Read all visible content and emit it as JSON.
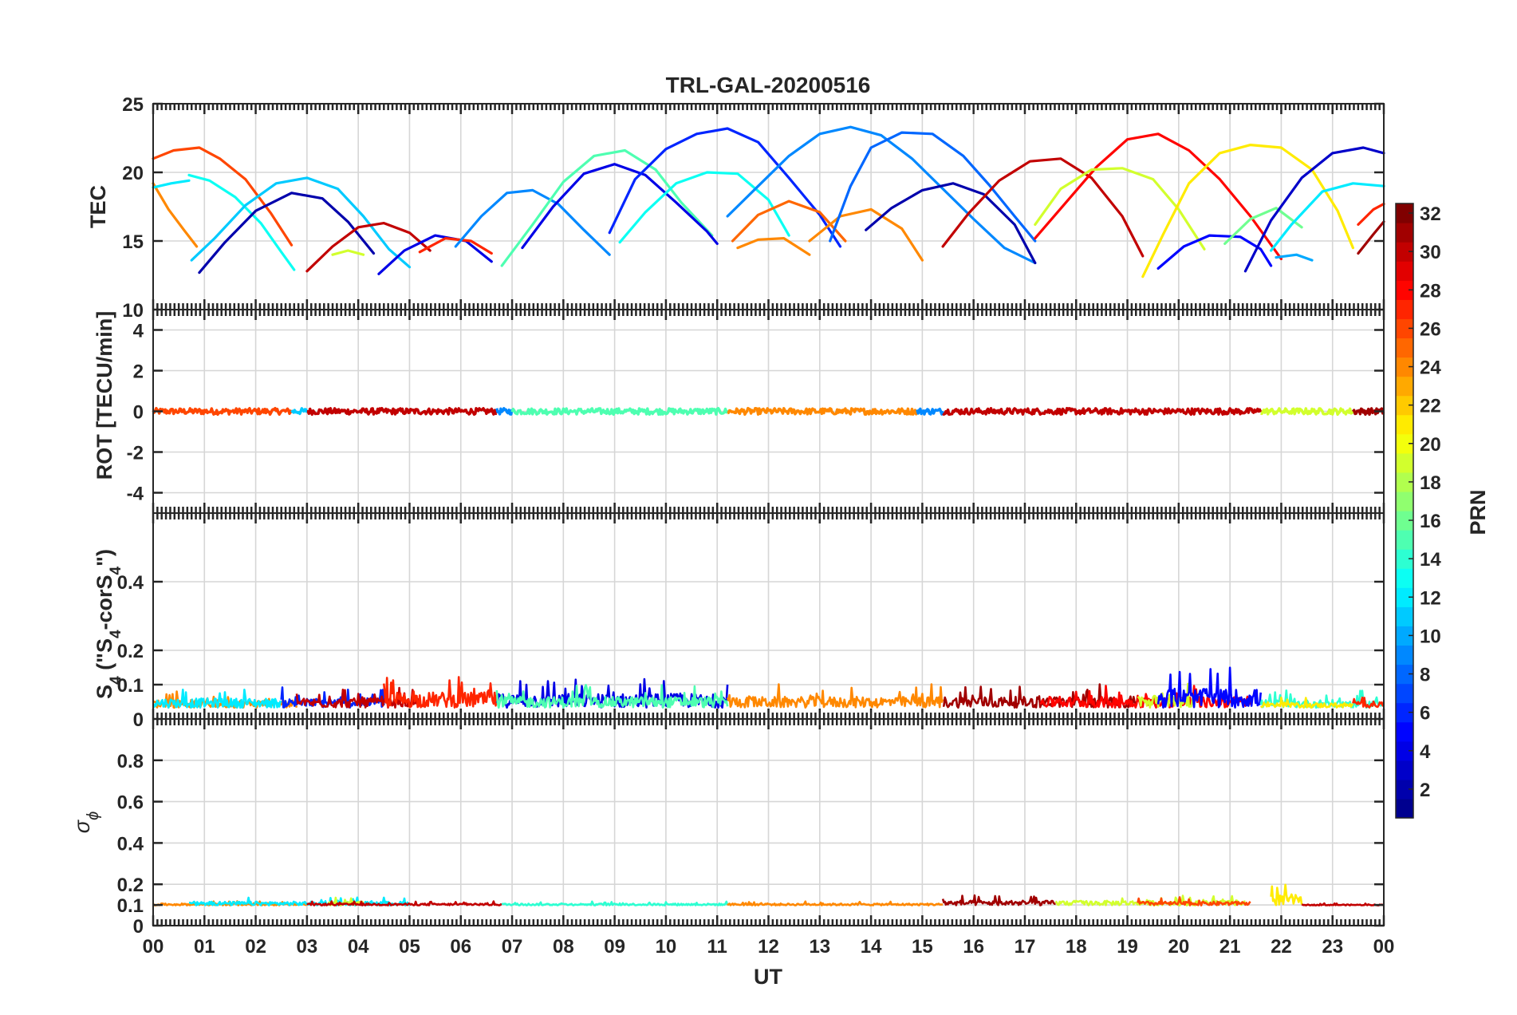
{
  "figure": {
    "title": "TRL-GAL-20200516",
    "xlabel": "UT",
    "x_ticks": [
      "00",
      "01",
      "02",
      "03",
      "04",
      "05",
      "06",
      "07",
      "08",
      "09",
      "10",
      "11",
      "12",
      "13",
      "14",
      "15",
      "16",
      "17",
      "18",
      "19",
      "20",
      "21",
      "22",
      "23",
      "00"
    ]
  },
  "colorbar": {
    "label": "PRN",
    "range": [
      1,
      32
    ],
    "ticks": [
      "2",
      "4",
      "6",
      "8",
      "10",
      "12",
      "14",
      "16",
      "18",
      "20",
      "22",
      "24",
      "26",
      "28",
      "30",
      "32"
    ],
    "colormap": [
      "#00008f",
      "#0000ff",
      "#0080ff",
      "#00ffff",
      "#80ff80",
      "#ffff00",
      "#ff8000",
      "#ff0000",
      "#800000"
    ]
  },
  "chart_data": [
    {
      "id": "tec",
      "type": "line",
      "ylabel": "TEC",
      "ylim": [
        10,
        25
      ],
      "y_ticks": [
        "10",
        "15",
        "20",
        "25"
      ],
      "xlim_hours": [
        0,
        24
      ],
      "series": [
        {
          "prn": 26,
          "t": [
            0.0,
            0.4,
            0.9,
            1.3,
            1.8,
            2.3,
            2.7
          ],
          "v": [
            21.0,
            21.6,
            21.8,
            21.0,
            19.5,
            17.0,
            14.7
          ]
        },
        {
          "prn": 24,
          "t": [
            0.0,
            0.3,
            0.6,
            0.85
          ],
          "v": [
            19.2,
            17.3,
            15.8,
            14.6
          ]
        },
        {
          "prn": 12,
          "t": [
            0.0,
            0.35,
            0.7
          ],
          "v": [
            18.9,
            19.2,
            19.4
          ]
        },
        {
          "prn": 13,
          "t": [
            0.7,
            1.1,
            1.6,
            2.1,
            2.5,
            2.75
          ],
          "v": [
            19.8,
            19.4,
            18.2,
            16.3,
            14.2,
            12.9
          ]
        },
        {
          "prn": 11,
          "t": [
            0.75,
            1.2,
            1.8,
            2.4,
            3.0,
            3.6,
            4.1,
            4.6,
            5.0
          ],
          "v": [
            13.6,
            15.2,
            17.6,
            19.2,
            19.6,
            18.8,
            16.8,
            14.4,
            13.1
          ]
        },
        {
          "prn": 2,
          "t": [
            0.9,
            1.4,
            2.0,
            2.7,
            3.3,
            3.8,
            4.3
          ],
          "v": [
            12.7,
            14.9,
            17.2,
            18.5,
            18.1,
            16.4,
            14.1
          ]
        },
        {
          "prn": 30,
          "t": [
            3.0,
            3.5,
            4.0,
            4.5,
            5.0,
            5.4
          ],
          "v": [
            12.8,
            14.6,
            16.0,
            16.3,
            15.6,
            14.3
          ]
        },
        {
          "prn": 19,
          "t": [
            3.5,
            3.8,
            4.1
          ],
          "v": [
            14.0,
            14.3,
            14.0
          ]
        },
        {
          "prn": 4,
          "t": [
            4.4,
            4.9,
            5.5,
            6.1,
            6.6
          ],
          "v": [
            12.6,
            14.3,
            15.4,
            15.0,
            13.5
          ]
        },
        {
          "prn": 27,
          "t": [
            5.2,
            5.7,
            6.2,
            6.6
          ],
          "v": [
            14.2,
            15.2,
            15.0,
            14.1
          ]
        },
        {
          "prn": 9,
          "t": [
            5.9,
            6.4,
            6.9,
            7.4,
            7.9,
            8.4,
            8.9
          ],
          "v": [
            14.6,
            16.8,
            18.5,
            18.7,
            17.7,
            15.8,
            14.0
          ]
        },
        {
          "prn": 15,
          "t": [
            6.8,
            7.4,
            8.0,
            8.6,
            9.2,
            9.8,
            10.3,
            10.9
          ],
          "v": [
            13.2,
            16.2,
            19.3,
            21.2,
            21.6,
            20.2,
            17.8,
            15.4
          ]
        },
        {
          "prn": 4,
          "t": [
            7.2,
            7.8,
            8.4,
            9.0,
            9.6,
            10.2,
            10.8,
            11.0
          ],
          "v": [
            14.5,
            17.5,
            19.9,
            20.6,
            19.8,
            17.8,
            15.7,
            14.8
          ]
        },
        {
          "prn": 13,
          "t": [
            9.1,
            9.6,
            10.2,
            10.8,
            11.4,
            12.0,
            12.4
          ],
          "v": [
            14.9,
            17.1,
            19.2,
            20.0,
            19.9,
            18.0,
            15.4
          ]
        },
        {
          "prn": 6,
          "t": [
            8.9,
            9.4,
            10.0,
            10.6,
            11.2,
            11.8,
            12.4,
            13.0,
            13.4
          ],
          "v": [
            15.6,
            19.5,
            21.7,
            22.8,
            23.2,
            22.2,
            19.6,
            16.9,
            14.6
          ]
        },
        {
          "prn": 9,
          "t": [
            11.2,
            11.8,
            12.4,
            13.0,
            13.6,
            14.2,
            14.8,
            15.4,
            16.0,
            16.6,
            17.2
          ],
          "v": [
            16.8,
            19.0,
            21.2,
            22.8,
            23.3,
            22.7,
            21.0,
            18.8,
            16.6,
            14.5,
            13.4
          ]
        },
        {
          "prn": 25,
          "t": [
            11.3,
            11.8,
            12.4,
            13.0,
            13.5
          ],
          "v": [
            15.0,
            16.9,
            17.9,
            17.1,
            15.0
          ]
        },
        {
          "prn": 24,
          "t": [
            11.4,
            11.8,
            12.3,
            12.8
          ],
          "v": [
            14.5,
            15.1,
            15.2,
            14.0
          ]
        },
        {
          "prn": 24,
          "t": [
            12.8,
            13.4,
            14.0,
            14.6,
            15.0
          ],
          "v": [
            15.0,
            16.8,
            17.3,
            15.9,
            13.6
          ]
        },
        {
          "prn": 8,
          "t": [
            13.2,
            13.6,
            14.0,
            14.6,
            15.2,
            15.8,
            16.3,
            16.8,
            17.2
          ],
          "v": [
            15.0,
            19.0,
            21.8,
            22.9,
            22.8,
            21.2,
            19.1,
            16.8,
            15.0
          ]
        },
        {
          "prn": 2,
          "t": [
            13.9,
            14.4,
            15.0,
            15.6,
            16.2,
            16.8,
            17.2
          ],
          "v": [
            15.8,
            17.4,
            18.7,
            19.2,
            18.4,
            16.2,
            13.4
          ]
        },
        {
          "prn": 30,
          "t": [
            15.4,
            15.9,
            16.5,
            17.1,
            17.7,
            18.3,
            18.9,
            19.3
          ],
          "v": [
            14.6,
            17.0,
            19.4,
            20.8,
            21.0,
            19.6,
            16.8,
            13.9
          ]
        },
        {
          "prn": 28,
          "t": [
            17.2,
            17.8,
            18.4,
            19.0,
            19.6,
            20.2,
            20.8,
            21.4,
            22.0
          ],
          "v": [
            15.2,
            17.8,
            20.4,
            22.4,
            22.8,
            21.6,
            19.5,
            16.8,
            13.7
          ]
        },
        {
          "prn": 19,
          "t": [
            17.2,
            17.7,
            18.3,
            18.9,
            19.5,
            20.0,
            20.5
          ],
          "v": [
            16.2,
            18.8,
            20.2,
            20.3,
            19.5,
            17.3,
            14.4
          ]
        },
        {
          "prn": 21,
          "t": [
            19.3,
            19.7,
            20.2,
            20.8,
            21.4,
            22.0,
            22.6,
            23.1,
            23.4
          ],
          "v": [
            12.4,
            15.5,
            19.2,
            21.4,
            22.0,
            21.8,
            20.2,
            17.2,
            14.5
          ]
        },
        {
          "prn": 5,
          "t": [
            19.6,
            20.1,
            20.6,
            21.2,
            21.6,
            21.8
          ],
          "v": [
            13.0,
            14.6,
            15.4,
            15.3,
            14.4,
            13.2
          ]
        },
        {
          "prn": 16,
          "t": [
            20.9,
            21.4,
            21.9,
            22.4
          ],
          "v": [
            14.8,
            16.6,
            17.4,
            16.0
          ]
        },
        {
          "prn": 12,
          "t": [
            21.8,
            22.2,
            22.8,
            23.4,
            24.0
          ],
          "v": [
            14.3,
            16.2,
            18.6,
            19.2,
            19.0
          ]
        },
        {
          "prn": 3,
          "t": [
            21.3,
            21.8,
            22.4,
            23.0,
            23.6,
            24.0
          ],
          "v": [
            12.8,
            16.5,
            19.6,
            21.4,
            21.8,
            21.4
          ]
        },
        {
          "prn": 10,
          "t": [
            21.9,
            22.3,
            22.6
          ],
          "v": [
            13.8,
            14.0,
            13.6
          ]
        },
        {
          "prn": 27,
          "t": [
            23.5,
            23.8,
            24.0
          ],
          "v": [
            16.2,
            17.3,
            17.7
          ]
        },
        {
          "prn": 31,
          "t": [
            23.5,
            23.8,
            24.0
          ],
          "v": [
            14.1,
            15.5,
            16.4
          ]
        }
      ]
    },
    {
      "id": "rot",
      "type": "line",
      "ylabel": "ROT [TECU/min]",
      "ylim": [
        -5,
        5
      ],
      "y_ticks": [
        "-4",
        "-2",
        "0",
        "2",
        "4"
      ],
      "baseline": 0,
      "noise_amplitude": 0.15,
      "segments": [
        {
          "prn": 26,
          "t": [
            0.0,
            2.7
          ]
        },
        {
          "prn": 11,
          "t": [
            2.7,
            3.0
          ]
        },
        {
          "prn": 30,
          "t": [
            3.0,
            6.7
          ]
        },
        {
          "prn": 9,
          "t": [
            6.7,
            7.0
          ]
        },
        {
          "prn": 15,
          "t": [
            7.0,
            11.2
          ]
        },
        {
          "prn": 24,
          "t": [
            11.2,
            14.9
          ]
        },
        {
          "prn": 9,
          "t": [
            14.9,
            15.4
          ]
        },
        {
          "prn": 30,
          "t": [
            15.4,
            21.6
          ]
        },
        {
          "prn": 19,
          "t": [
            21.6,
            23.4
          ]
        },
        {
          "prn": 31,
          "t": [
            23.4,
            24.0
          ]
        }
      ]
    },
    {
      "id": "s4",
      "type": "line",
      "ylabel_text": "S",
      "ylabel_sub": "4",
      "ylabel_quote1": " (\"S",
      "ylabel_sub2": "4",
      "ylabel_mid": "-corS",
      "ylabel_sub3": "4",
      "ylabel_end": "\")",
      "ylim": [
        0,
        0.6
      ],
      "y_ticks": [
        "0",
        "0.1",
        "0.2",
        "0.4"
      ],
      "baseline": 0.045,
      "segments": [
        {
          "prn": 24,
          "t": [
            0.0,
            2.8
          ],
          "amp": 0.05
        },
        {
          "prn": 12,
          "t": [
            0.0,
            2.5
          ],
          "amp": 0.06
        },
        {
          "prn": 6,
          "t": [
            2.5,
            4.5
          ],
          "amp": 0.06
        },
        {
          "prn": 30,
          "t": [
            2.8,
            5.2
          ],
          "amp": 0.06
        },
        {
          "prn": 27,
          "t": [
            4.5,
            6.7
          ],
          "amp": 0.1
        },
        {
          "prn": 4,
          "t": [
            6.7,
            11.2
          ],
          "amp": 0.09
        },
        {
          "prn": 15,
          "t": [
            6.7,
            11.2
          ],
          "amp": 0.07
        },
        {
          "prn": 24,
          "t": [
            11.2,
            15.4
          ],
          "amp": 0.07
        },
        {
          "prn": 31,
          "t": [
            15.4,
            19.2
          ],
          "amp": 0.07
        },
        {
          "prn": 28,
          "t": [
            17.3,
            21.4
          ],
          "amp": 0.07
        },
        {
          "prn": 19,
          "t": [
            19.2,
            20.3
          ],
          "amp": 0.08
        },
        {
          "prn": 5,
          "t": [
            19.6,
            21.6
          ],
          "amp": 0.12
        },
        {
          "prn": 14,
          "t": [
            21.6,
            24.0
          ],
          "amp": 0.05
        },
        {
          "prn": 21,
          "t": [
            21.6,
            23.4
          ],
          "amp": 0.03
        },
        {
          "prn": 27,
          "t": [
            23.4,
            24.0
          ],
          "amp": 0.04
        }
      ]
    },
    {
      "id": "sigma_phi",
      "type": "line",
      "ylabel": "σ",
      "ylabel_sub": "ϕ",
      "ylim": [
        0,
        1
      ],
      "y_ticks": [
        "0",
        "0.1",
        "0.2",
        "0.4",
        "0.6",
        "0.8"
      ],
      "baseline": 0.11,
      "segments": [
        {
          "prn": 24,
          "t": [
            0.0,
            3.0
          ],
          "amp": 0.02
        },
        {
          "prn": 12,
          "t": [
            0.7,
            5.0
          ],
          "amp": 0.04
        },
        {
          "prn": 19,
          "t": [
            3.4,
            4.1
          ],
          "amp": 0.04
        },
        {
          "prn": 30,
          "t": [
            3.0,
            6.8
          ],
          "amp": 0.02
        },
        {
          "prn": 14,
          "t": [
            6.8,
            11.2
          ],
          "amp": 0.02
        },
        {
          "prn": 24,
          "t": [
            11.2,
            15.4
          ],
          "amp": 0.02
        },
        {
          "prn": 31,
          "t": [
            15.4,
            17.6
          ],
          "amp": 0.05
        },
        {
          "prn": 19,
          "t": [
            17.6,
            21.3
          ],
          "amp": 0.05
        },
        {
          "prn": 26,
          "t": [
            19.2,
            21.4
          ],
          "amp": 0.04
        },
        {
          "prn": 21,
          "t": [
            21.8,
            22.4
          ],
          "amp": 0.12
        },
        {
          "prn": 30,
          "t": [
            22.4,
            24.0
          ],
          "amp": 0.01
        }
      ]
    }
  ]
}
